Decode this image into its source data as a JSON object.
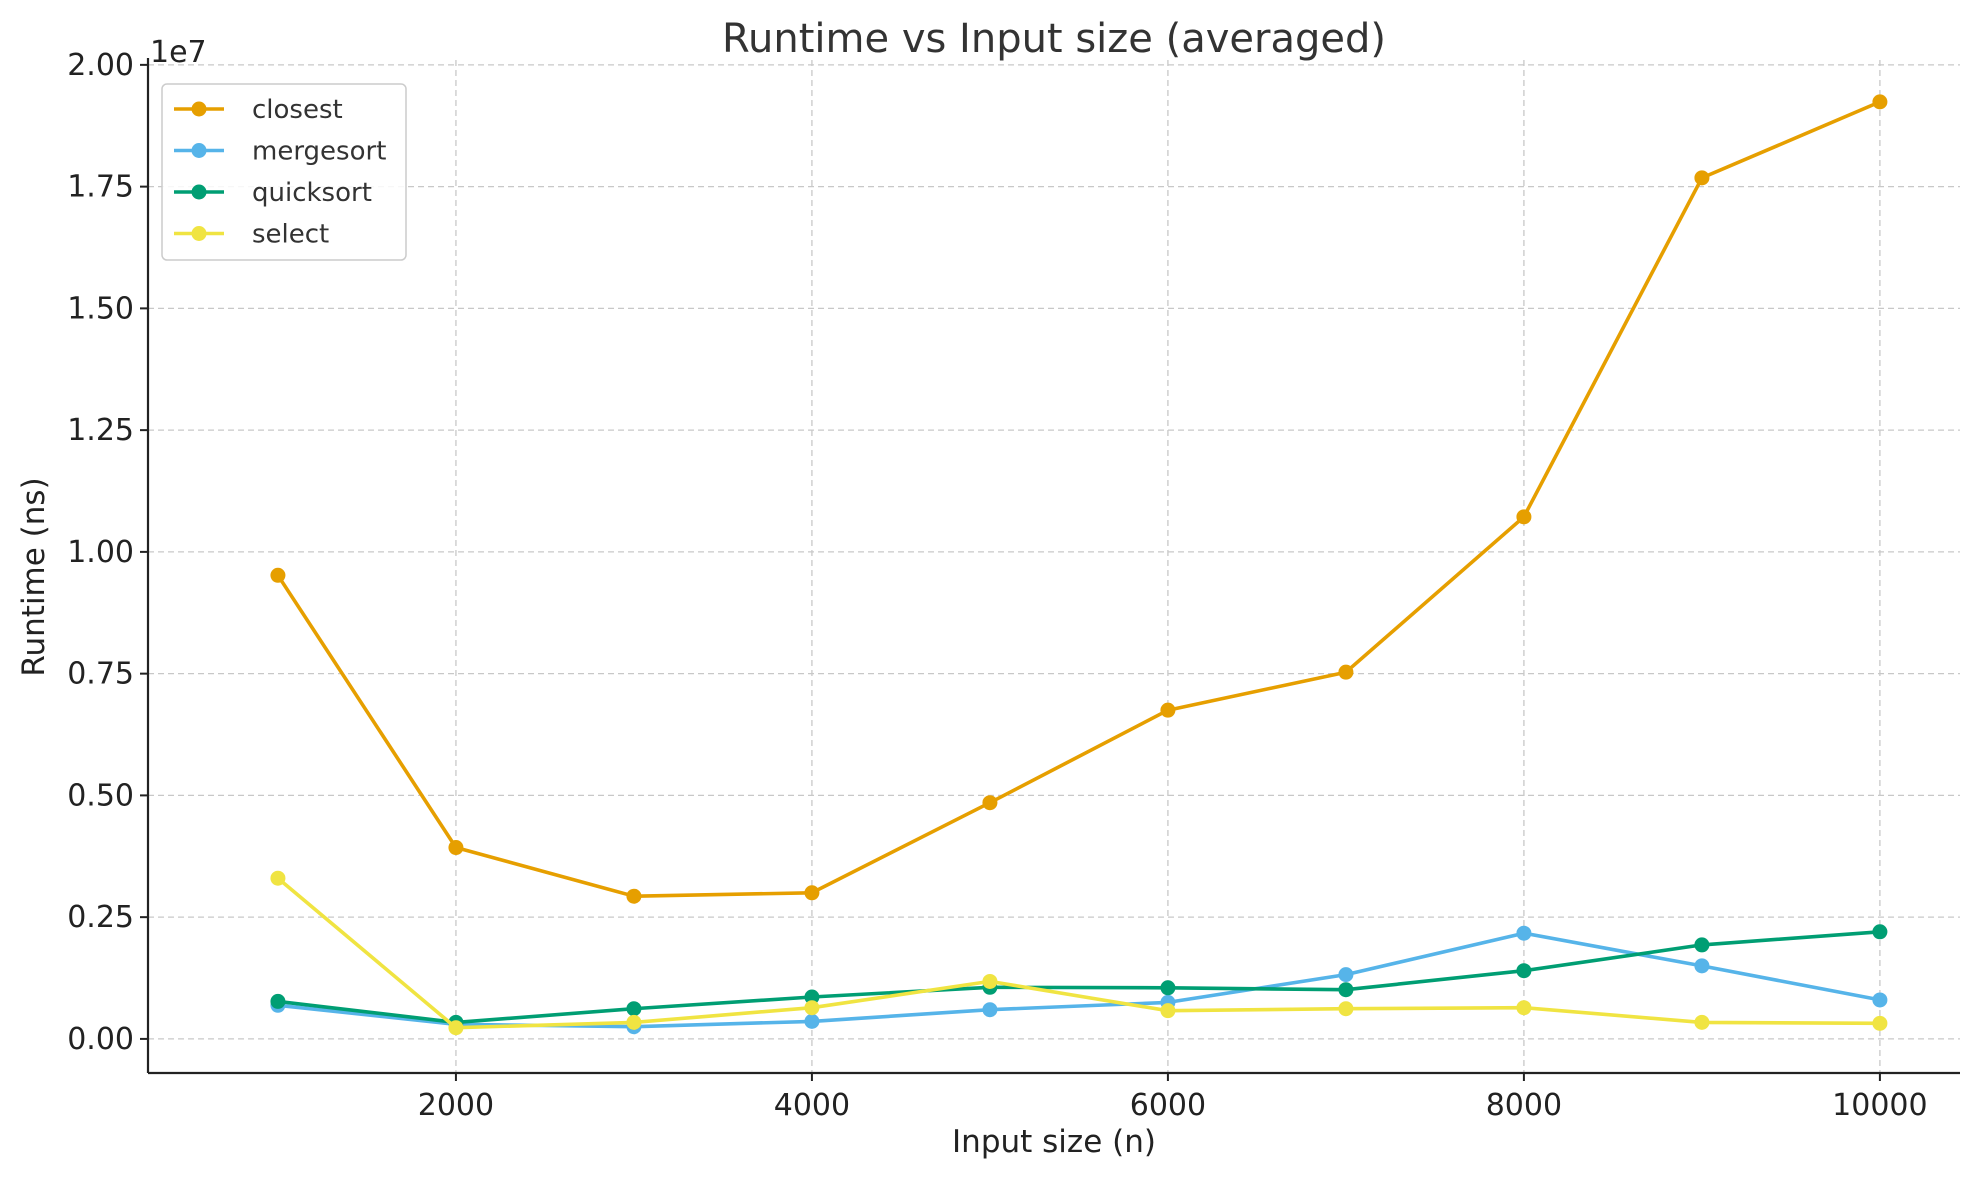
{
  "chart_data": {
    "type": "line",
    "title": "Runtime vs Input size (averaged)",
    "xlabel": "Input size (n)",
    "ylabel": "Runtime (ns)",
    "y_offset_label": "1e7",
    "y_scale": 10000000,
    "xlim": [
      270,
      10450
    ],
    "ylim": [
      -0.07,
      2.01
    ],
    "x_ticks": [
      2000,
      4000,
      6000,
      8000,
      10000
    ],
    "x_tick_labels": [
      "2000",
      "4000",
      "6000",
      "8000",
      "10000"
    ],
    "y_ticks": [
      0,
      0.25,
      0.5,
      0.75,
      1.0,
      1.25,
      1.5,
      1.75,
      2.0
    ],
    "y_tick_labels": [
      "0.00",
      "0.25",
      "0.50",
      "0.75",
      "1.00",
      "1.25",
      "1.50",
      "1.75",
      "2.00"
    ],
    "grid": true,
    "legend_position": "top-left",
    "x": [
      1000,
      2000,
      3000,
      4000,
      5000,
      6000,
      7000,
      8000,
      9000,
      10000
    ],
    "series": [
      {
        "name": "closest",
        "color": "#E69F00",
        "values": [
          0.952,
          0.393,
          0.293,
          0.3,
          0.485,
          0.675,
          0.753,
          1.072,
          1.768,
          1.924
        ]
      },
      {
        "name": "mergesort",
        "color": "#56B4E9",
        "values": [
          0.069,
          0.03,
          0.025,
          0.036,
          0.06,
          0.075,
          0.132,
          0.217,
          0.15,
          0.08
        ]
      },
      {
        "name": "quicksort",
        "color": "#009E73",
        "values": [
          0.077,
          0.034,
          0.062,
          0.086,
          0.106,
          0.105,
          0.101,
          0.14,
          0.193,
          0.22
        ]
      },
      {
        "name": "select",
        "color": "#F0E442",
        "values": [
          0.33,
          0.023,
          0.034,
          0.064,
          0.118,
          0.058,
          0.062,
          0.064,
          0.034,
          0.032
        ]
      }
    ]
  }
}
